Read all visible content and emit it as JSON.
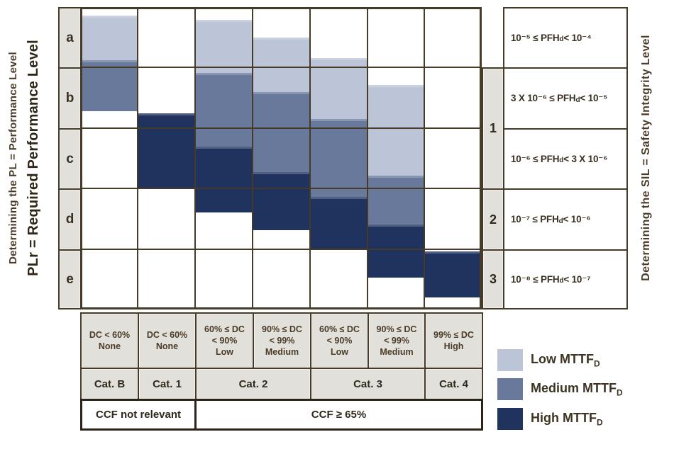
{
  "titles": {
    "left_outer": "Determining the PL = Performance Level",
    "left_inner": "PLr = Required Performance Level",
    "right": "Determining the SIL = Safety Integrity Level"
  },
  "row_labels": [
    "a",
    "b",
    "c",
    "d",
    "e"
  ],
  "sil": {
    "items": [
      {
        "label": "1",
        "rows": "b-c"
      },
      {
        "label": "2",
        "rows": "d"
      },
      {
        "label": "3",
        "rows": "e"
      }
    ]
  },
  "pfh_rows": [
    {
      "left": "10⁻⁵ ≤ PFH",
      "sub": "d",
      "right": " < 10⁻⁴"
    },
    {
      "left": "3 X 10⁻⁶ ≤ PFH",
      "sub": "d",
      "right": " < 10⁻⁵"
    },
    {
      "left": "10⁻⁶ ≤ PFH",
      "sub": "d",
      "right": " < 3 X 10⁻⁶"
    },
    {
      "left": "10⁻⁷ ≤ PFH",
      "sub": "d",
      "right": " < 10⁻⁶"
    },
    {
      "left": "10⁻⁸ ≤ PFH",
      "sub": "d",
      "right": " < 10⁻⁷"
    }
  ],
  "dc_headers": [
    [
      "DC < 60%",
      "None"
    ],
    [
      "DC < 60%",
      "None"
    ],
    [
      "60% ≤ DC",
      "< 90%",
      "Low"
    ],
    [
      "90% ≤ DC",
      "< 99%",
      "Medium"
    ],
    [
      "60% ≤ DC",
      "< 90%",
      "Low"
    ],
    [
      "90% ≤ DC",
      "< 99%",
      "Medium"
    ],
    [
      "99% ≤ DC",
      "High"
    ]
  ],
  "categories": [
    {
      "label": "Cat. B"
    },
    {
      "label": "Cat. 1"
    },
    {
      "label": "Cat. 2"
    },
    {
      "label": "Cat. 3"
    },
    {
      "label": "Cat. 4"
    }
  ],
  "ccf": [
    {
      "label": "CCF not relevant"
    },
    {
      "label": "CCF ≥ 65%"
    }
  ],
  "legend": [
    {
      "label": "Low MTTF",
      "sub": "D",
      "level": "low",
      "color": "#bcc5d7"
    },
    {
      "label": "Medium MTTF",
      "sub": "D",
      "level": "medium",
      "color": "#68799c"
    },
    {
      "label": "High MTTF",
      "sub": "D",
      "level": "high",
      "color": "#20335f"
    }
  ],
  "colors": {
    "low": "#bcc5d7",
    "medium": "#68799c",
    "high": "#20335f",
    "cell_gray": "#e2e0da",
    "grid_border": "#463a28"
  },
  "chart_data": {
    "type": "stacked-range-bar",
    "title": "ISO 13849-1 relationship between Category, DC, MTTFd and PL / SIL",
    "row_axis": [
      "a",
      "b",
      "c",
      "d",
      "e"
    ],
    "unit_note": "segment from/to measured in PL-row units: 0 = top of row a, 5 = bottom of row e",
    "columns": [
      {
        "category": "Cat. B",
        "dc": "DC < 60% None",
        "segments": [
          {
            "level": "low",
            "from": 0.14,
            "to": 0.88
          },
          {
            "level": "medium",
            "from": 0.88,
            "to": 1.72
          }
        ]
      },
      {
        "category": "Cat. 1",
        "dc": "DC < 60% None",
        "segments": [
          {
            "level": "high",
            "from": 1.76,
            "to": 3.0
          }
        ]
      },
      {
        "category": "Cat. 2",
        "dc": "60% ≤ DC < 90% Low",
        "segments": [
          {
            "level": "low",
            "from": 0.21,
            "to": 1.09
          },
          {
            "level": "medium",
            "from": 1.09,
            "to": 2.31
          },
          {
            "level": "high",
            "from": 2.31,
            "to": 3.4
          }
        ]
      },
      {
        "category": "Cat. 2",
        "dc": "90% ≤ DC < 99% Medium",
        "segments": [
          {
            "level": "low",
            "from": 0.5,
            "to": 1.41
          },
          {
            "level": "medium",
            "from": 1.41,
            "to": 2.73
          },
          {
            "level": "high",
            "from": 2.73,
            "to": 3.69
          }
        ]
      },
      {
        "category": "Cat. 3",
        "dc": "60% ≤ DC < 90% Low",
        "segments": [
          {
            "level": "low",
            "from": 0.84,
            "to": 1.85
          },
          {
            "level": "medium",
            "from": 1.85,
            "to": 3.14
          },
          {
            "level": "high",
            "from": 3.14,
            "to": 4.0
          }
        ]
      },
      {
        "category": "Cat. 3",
        "dc": "90% ≤ DC < 99% Medium",
        "segments": [
          {
            "level": "low",
            "from": 1.29,
            "to": 2.79
          },
          {
            "level": "medium",
            "from": 2.79,
            "to": 3.6
          },
          {
            "level": "high",
            "from": 3.6,
            "to": 4.47
          }
        ]
      },
      {
        "category": "Cat. 4",
        "dc": "99% ≤ DC High",
        "segments": [
          {
            "level": "high",
            "from": 4.04,
            "to": 4.8
          }
        ]
      }
    ]
  }
}
